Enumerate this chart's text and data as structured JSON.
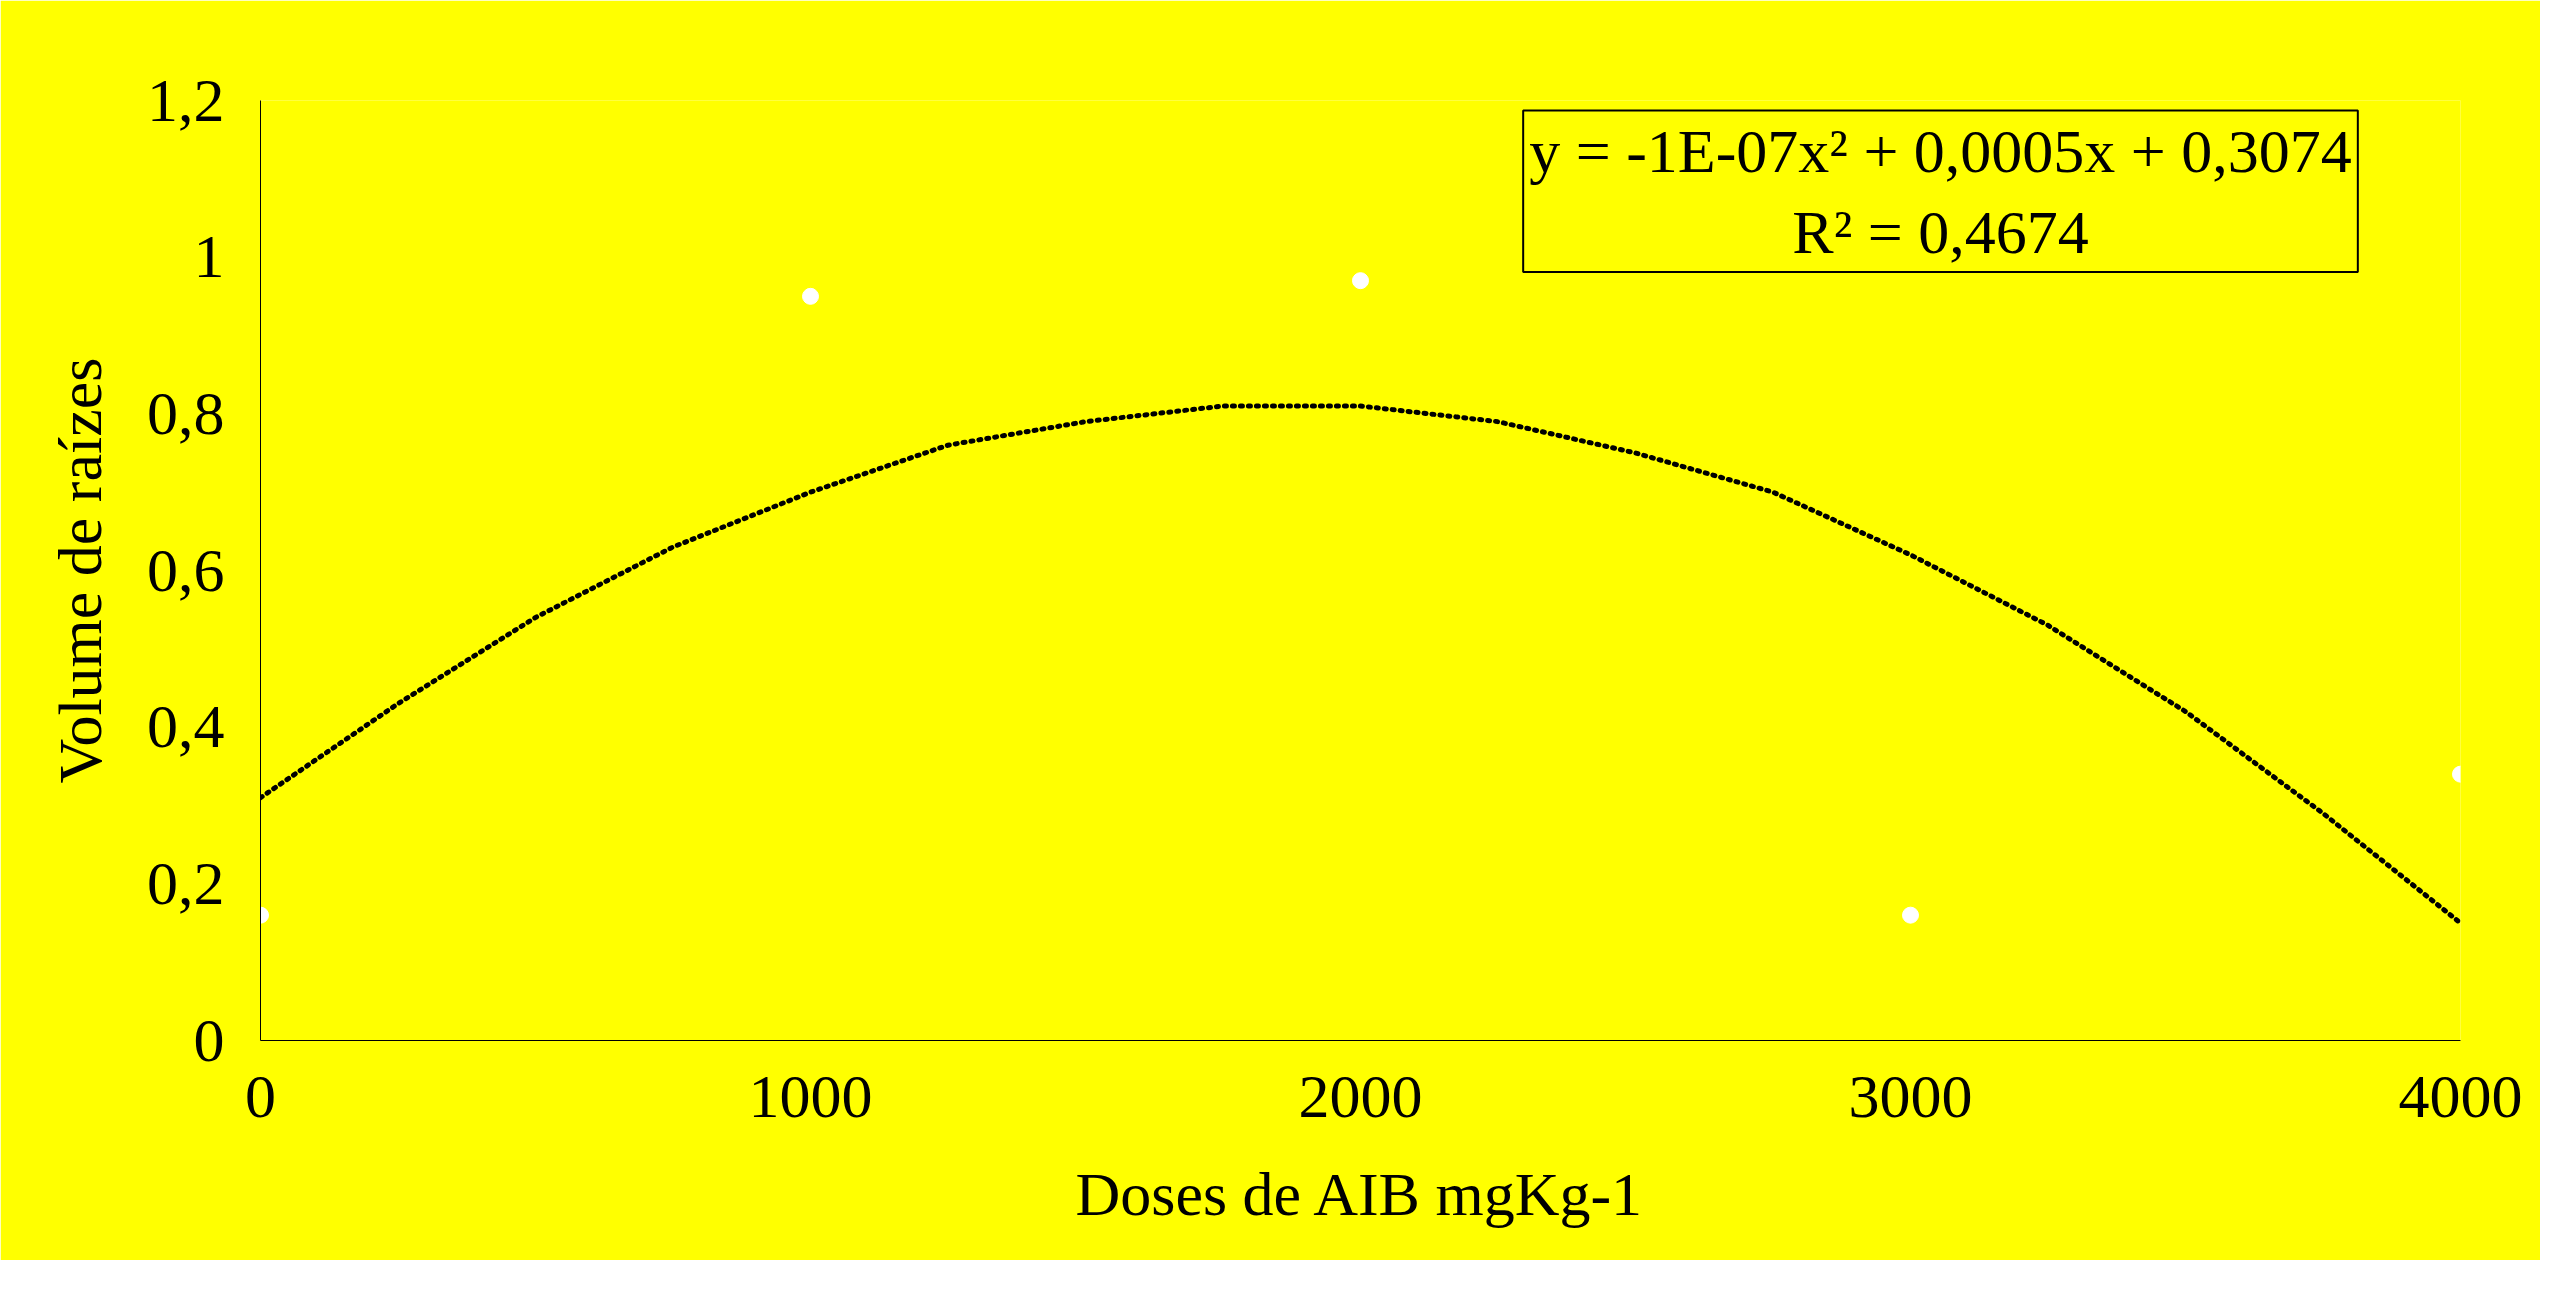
{
  "chart_data": {
    "type": "scatter",
    "xlabel": "Doses de AIB mgKg-1",
    "ylabel": "Volume de raízes",
    "x": [
      0,
      1000,
      2000,
      3000,
      4000
    ],
    "series": [
      {
        "color": "#ffffff",
        "marker": "circle",
        "values": [
          0.16,
          0.95,
          0.97,
          0.16,
          0.34
        ]
      },
      {
        "type": "line",
        "color": "#000000",
        "line_style": "dotted",
        "marker": "none",
        "x": [
          0,
          250,
          500,
          750,
          1000,
          1250,
          1500,
          1750,
          2000,
          2250,
          2500,
          2750,
          3000,
          3250,
          3500,
          3750,
          4000
        ],
        "values": [
          0.31,
          0.43,
          0.54,
          0.63,
          0.7,
          0.76,
          0.79,
          0.81,
          0.81,
          0.79,
          0.75,
          0.7,
          0.62,
          0.53,
          0.42,
          0.29,
          0.15
        ]
      }
    ],
    "xlim": [
      0,
      4000
    ],
    "ylim": [
      0,
      1.2
    ],
    "xticks": [
      0,
      1000,
      2000,
      3000,
      4000
    ],
    "yticks": [
      0,
      {
        "value": 0.2,
        "label": "0,2"
      },
      {
        "value": 0.4,
        "label": "0,4"
      },
      {
        "value": 0.6,
        "label": "0,6"
      },
      {
        "value": 0.8,
        "label": "0,8"
      },
      1,
      {
        "value": 1.2,
        "label": "1,2"
      }
    ],
    "annotations": [
      "y = -1E-07x² + 0,0005x + 0,3074\nR² = 0,4674"
    ],
    "grid": false
  }
}
